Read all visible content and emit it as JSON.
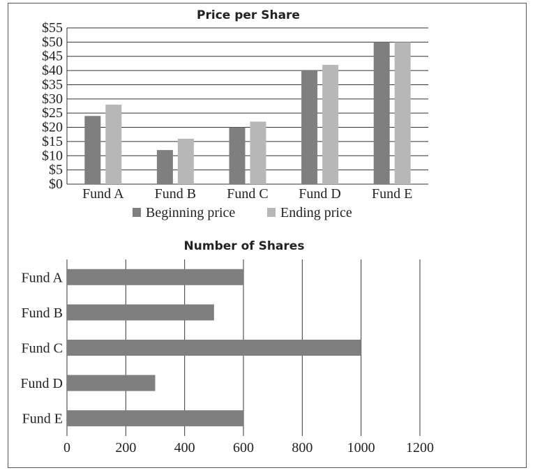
{
  "chart_data": [
    {
      "type": "bar",
      "title": "Price per Share",
      "categories": [
        "Fund A",
        "Fund B",
        "Fund C",
        "Fund D",
        "Fund E"
      ],
      "series": [
        {
          "name": "Beginning price",
          "values": [
            24,
            12,
            20,
            40,
            50
          ],
          "color": "#7f7f7f"
        },
        {
          "name": "Ending price",
          "values": [
            28,
            16,
            22,
            42,
            50
          ],
          "color": "#b7b7b7"
        }
      ],
      "ylim": [
        0,
        55
      ],
      "yticks": [
        "$0",
        "$5",
        "$10",
        "$15",
        "$20",
        "$25",
        "$30",
        "$35",
        "$40",
        "$45",
        "$50",
        "$55"
      ],
      "grid": true,
      "legend": "bottom"
    },
    {
      "type": "bar",
      "orientation": "horizontal",
      "title": "Number of Shares",
      "categories": [
        "Fund A",
        "Fund B",
        "Fund C",
        "Fund D",
        "Fund E"
      ],
      "series": [
        {
          "name": "",
          "values": [
            600,
            500,
            1000,
            300,
            600
          ],
          "color": "#7f7f7f"
        }
      ],
      "xlim": [
        0,
        1200
      ],
      "xticks": [
        "0",
        "200",
        "400",
        "600",
        "800",
        "1000",
        "1200"
      ],
      "grid": true
    }
  ]
}
